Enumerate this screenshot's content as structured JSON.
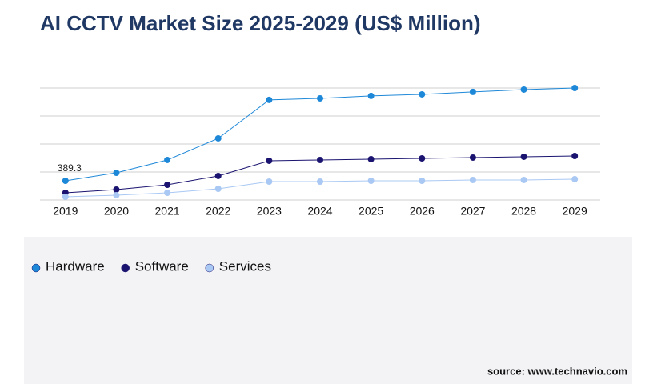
{
  "chart_data": {
    "type": "line",
    "title": "AI CCTV Market Size 2025-2029 (US$ Million)",
    "source": "source: www.technavio.com",
    "categories": [
      "2019",
      "2020",
      "2021",
      "2022",
      "2023",
      "2024",
      "2025",
      "2026",
      "2027",
      "2028",
      "2029"
    ],
    "ylim": [
      0,
      2270
    ],
    "grid": true,
    "series": [
      {
        "name": "Hardware",
        "color": "#1e88d8",
        "values": [
          389.3,
          551,
          811,
          1249,
          2028,
          2060,
          2109,
          2141,
          2190,
          2238,
          2270
        ]
      },
      {
        "name": "Software",
        "color": "#1a1470",
        "values": [
          146,
          211,
          308,
          487,
          795,
          811,
          827,
          843,
          860,
          876,
          892
        ]
      },
      {
        "name": "Services",
        "color": "#a9c8f3",
        "values": [
          65,
          97,
          146,
          227,
          373,
          373,
          389,
          389,
          406,
          406,
          422
        ]
      }
    ]
  }
}
